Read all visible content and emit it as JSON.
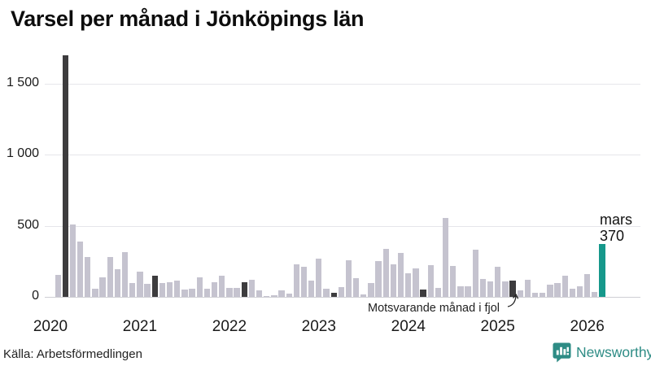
{
  "title": "Varsel per månad i Jönköpings län",
  "source": "Källa: Arbetsförmedlingen",
  "brand": {
    "name": "Newsworthy",
    "color": "#2e8c85"
  },
  "annotation": {
    "text": "Motsvarande månad i fjol"
  },
  "current_label": {
    "month": "mars",
    "value": "370"
  },
  "chart_data": {
    "type": "bar",
    "title": "Varsel per månad i Jönköpings län",
    "xlabel": "",
    "ylabel": "",
    "ylim": [
      0,
      1750
    ],
    "grid": true,
    "legend_position": "none",
    "y_ticks": [
      0,
      500,
      1000,
      1500
    ],
    "y_tick_labels": [
      "0",
      "500",
      "1 000",
      "1 500"
    ],
    "x_tick_labels": [
      "2020",
      "2021",
      "2022",
      "2023",
      "2024",
      "2025",
      "2026"
    ],
    "colors": {
      "normal": "#c5c3cf",
      "fjol": "#3d3c3e",
      "current": "#16988b"
    },
    "highlight": {
      "label": "mars",
      "value": 370,
      "annotation_target": "mars 2025"
    },
    "months": [
      "jan 2020",
      "feb 2020",
      "mars 2020",
      "apr 2020",
      "maj 2020",
      "juni 2020",
      "juli 2020",
      "aug 2020",
      "sep 2020",
      "okt 2020",
      "nov 2020",
      "dec 2020",
      "jan 2021",
      "feb 2021",
      "mars 2021",
      "apr 2021",
      "maj 2021",
      "juni 2021",
      "juli 2021",
      "aug 2021",
      "sep 2021",
      "okt 2021",
      "nov 2021",
      "dec 2021",
      "jan 2022",
      "feb 2022",
      "mars 2022",
      "apr 2022",
      "maj 2022",
      "juni 2022",
      "juli 2022",
      "aug 2022",
      "sep 2022",
      "okt 2022",
      "nov 2022",
      "dec 2022",
      "jan 2023",
      "feb 2023",
      "mars 2023",
      "apr 2023",
      "maj 2023",
      "juni 2023",
      "juli 2023",
      "aug 2023",
      "sep 2023",
      "okt 2023",
      "nov 2023",
      "dec 2023",
      "jan 2024",
      "feb 2024",
      "mars 2024",
      "apr 2024",
      "maj 2024",
      "juni 2024",
      "juli 2024",
      "aug 2024",
      "sep 2024",
      "okt 2024",
      "nov 2024",
      "dec 2024",
      "jan 2025",
      "feb 2025",
      "mars 2025",
      "apr 2025",
      "maj 2025",
      "juni 2025",
      "juli 2025",
      "aug 2025",
      "sep 2025",
      "okt 2025",
      "nov 2025",
      "dec 2025",
      "jan 2026",
      "feb 2026",
      "mars 2026"
    ],
    "values": [
      0,
      155,
      1700,
      510,
      390,
      280,
      55,
      140,
      280,
      195,
      315,
      95,
      180,
      90,
      150,
      100,
      105,
      115,
      50,
      55,
      135,
      55,
      105,
      150,
      65,
      65,
      105,
      120,
      45,
      5,
      10,
      45,
      25,
      230,
      210,
      115,
      270,
      55,
      30,
      70,
      260,
      130,
      20,
      95,
      250,
      335,
      230,
      310,
      165,
      200,
      50,
      225,
      65,
      555,
      215,
      75,
      75,
      330,
      125,
      110,
      210,
      110,
      115,
      45,
      120,
      30,
      30,
      85,
      100,
      150,
      60,
      75,
      160,
      35,
      370
    ]
  }
}
